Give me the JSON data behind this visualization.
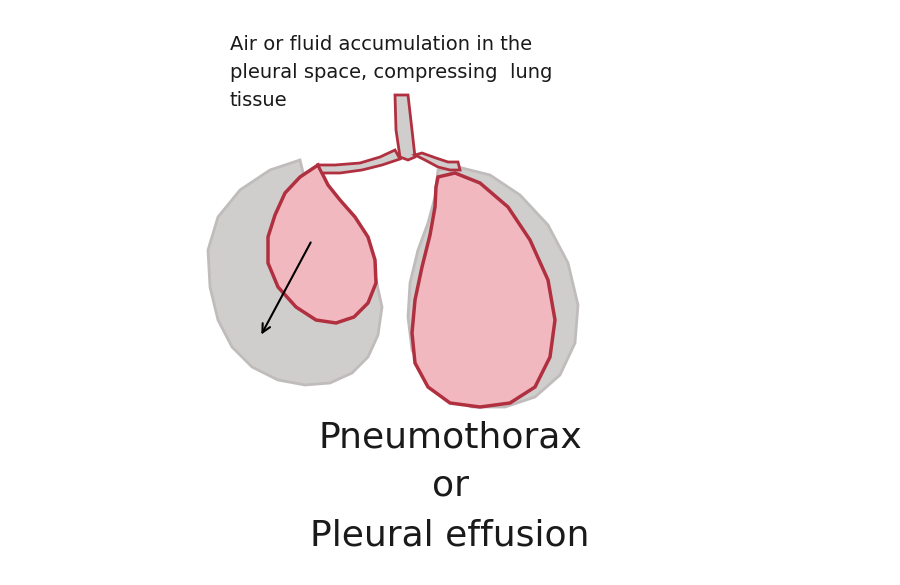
{
  "background_color": "#ffffff",
  "lung_fill_pink": "#f2b8c0",
  "lung_stroke_red": "#b03040",
  "pleural_fill_gray": "#d0cdcd",
  "pleural_stroke": "#c0bcbc",
  "pneumothorax_fill": "#d0cdcd",
  "text_annotation": "Air or fluid accumulation in the\npleural space, compressing  lung\ntissue",
  "label_line1": "Pneumothorax",
  "label_line2": "or",
  "label_line3": "Pleural effusion",
  "text_color": "#1a1a1a",
  "annotation_fontsize": 14,
  "label_fontsize": 26,
  "fig_width": 9.0,
  "fig_height": 5.85
}
